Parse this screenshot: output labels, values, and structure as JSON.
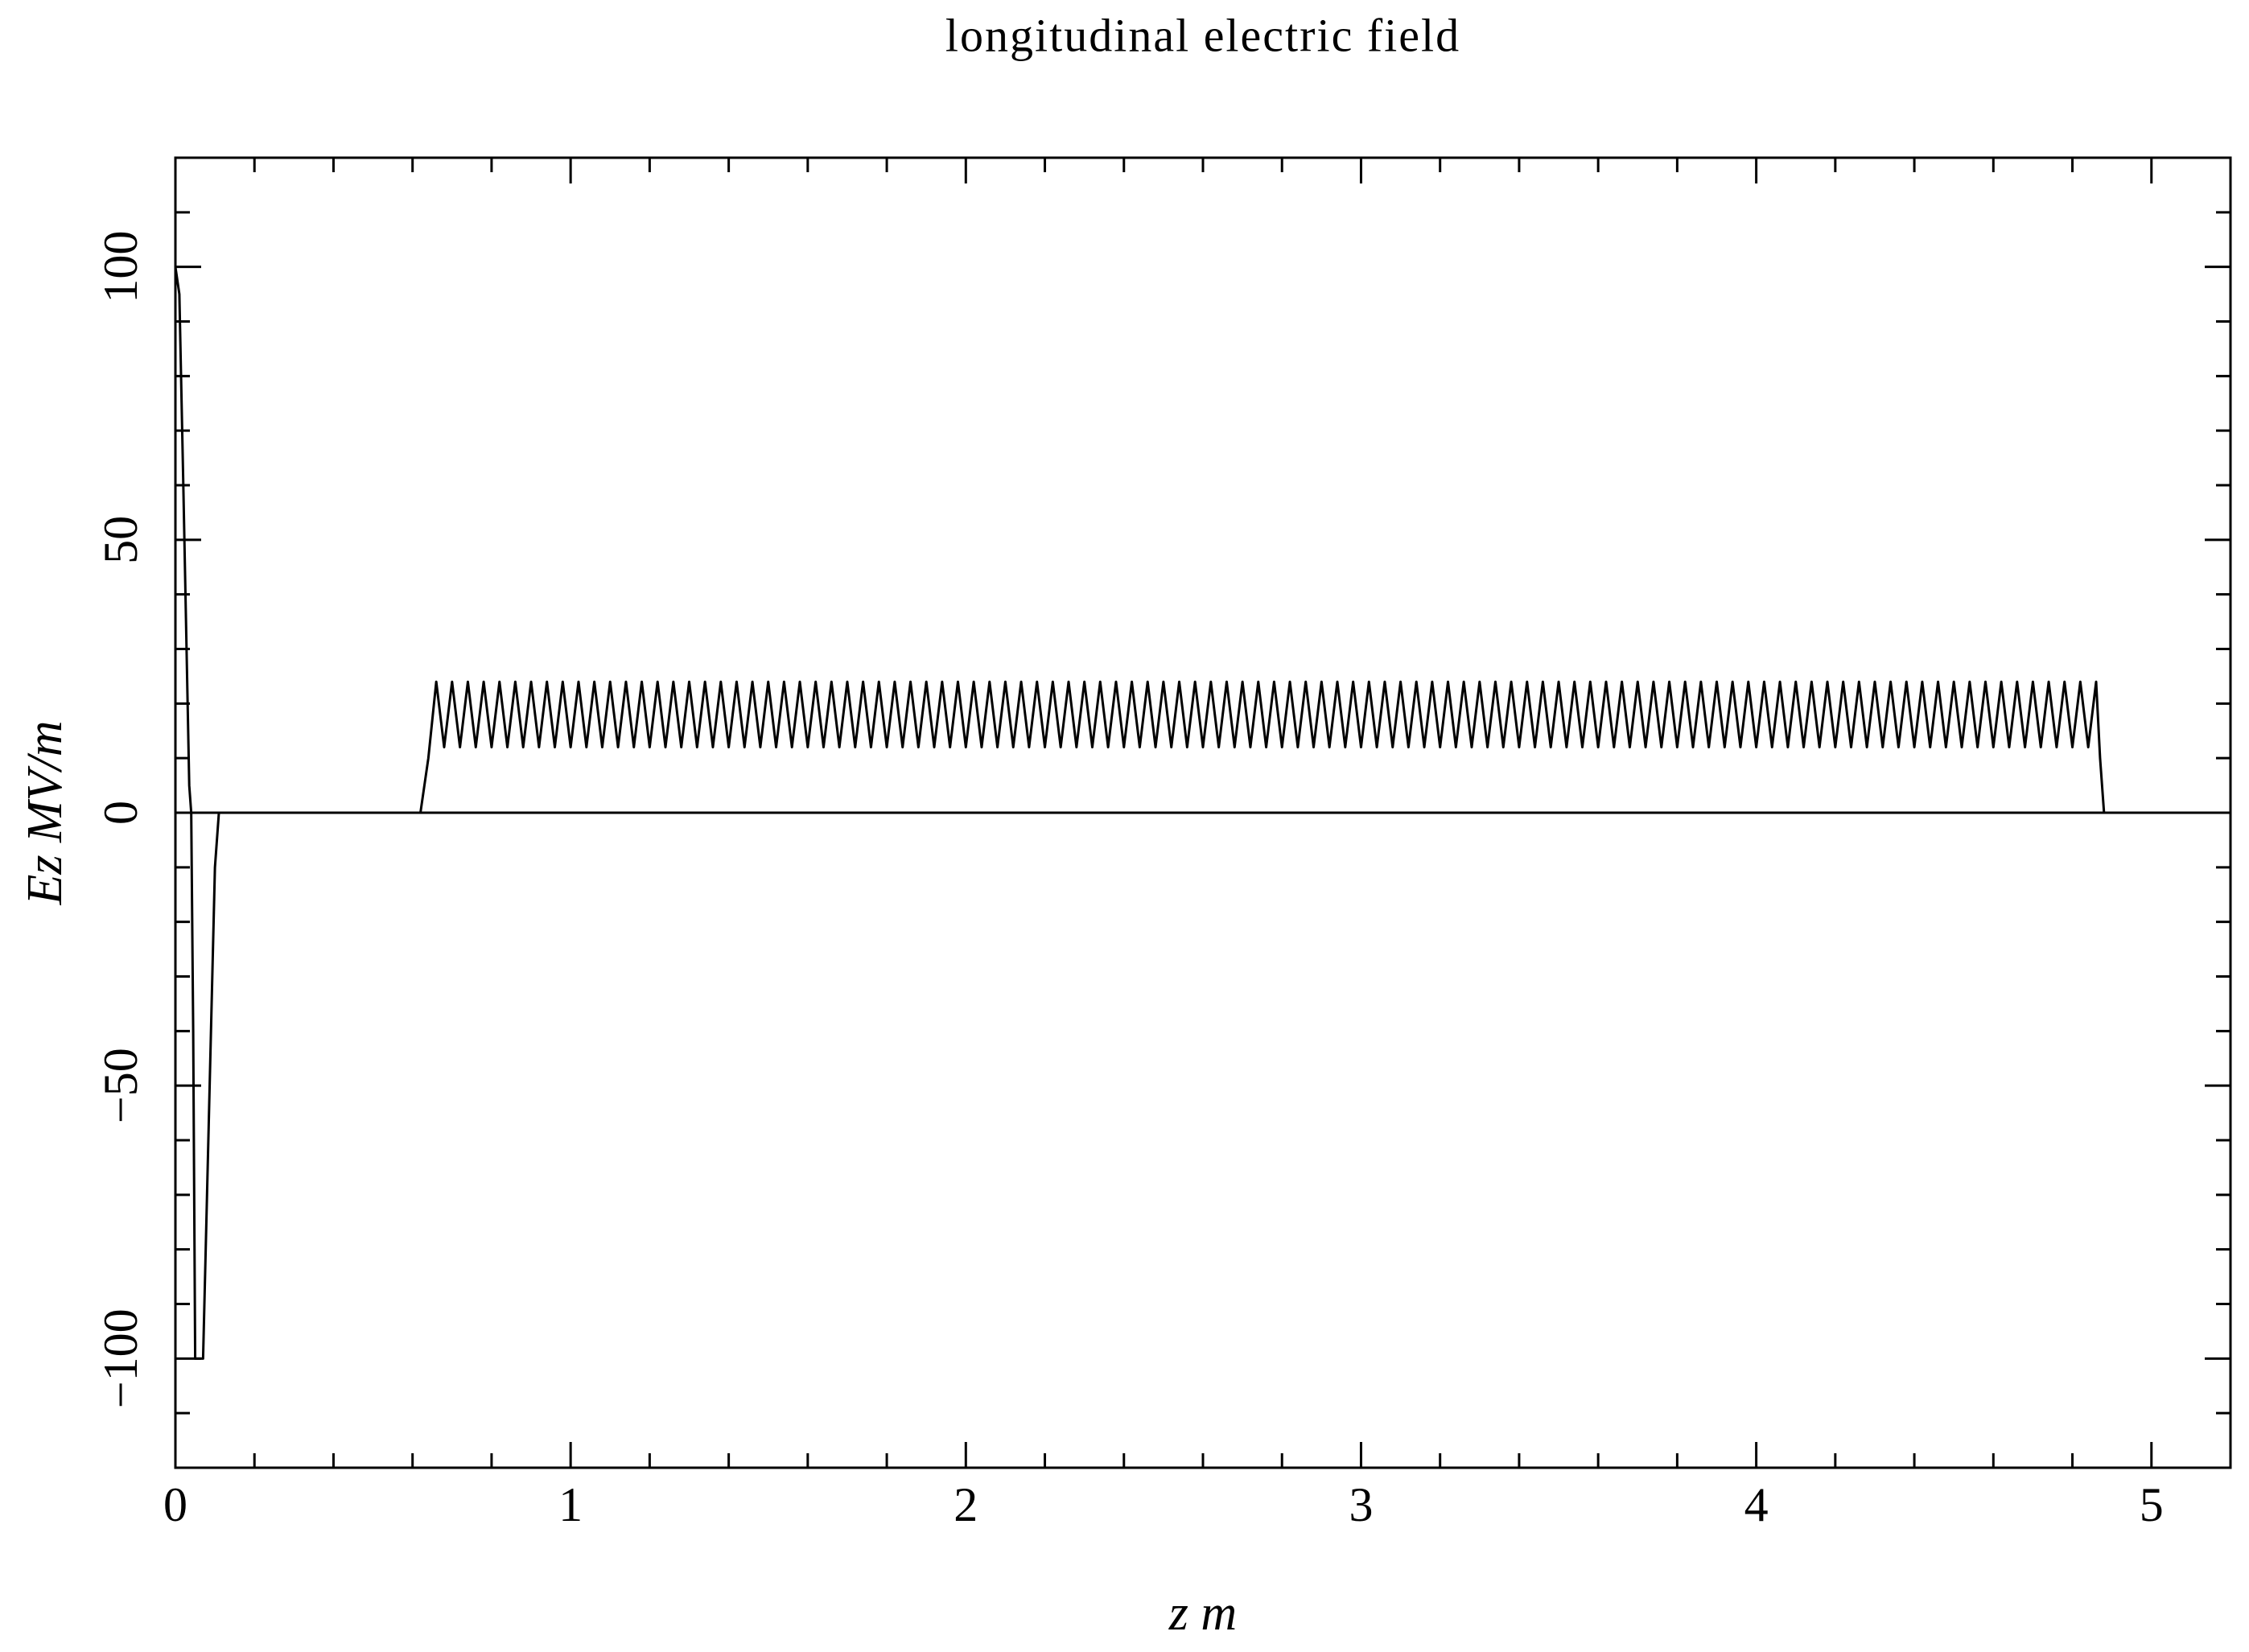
{
  "chart_data": {
    "type": "line",
    "title": "longitudinal electric field",
    "x_label": "z m",
    "y_label": "Ez MV/m",
    "color": "#000000",
    "zero_line": true,
    "xlim": [
      0,
      5.2
    ],
    "ylim": [
      -120,
      120
    ],
    "xticks": [
      0,
      1,
      2,
      3,
      4,
      5
    ],
    "yticks": [
      -100,
      -50,
      0,
      50,
      100
    ],
    "xminorticks": [
      0.2,
      0.4,
      0.6,
      0.8,
      1.2,
      1.4,
      1.6,
      1.8,
      2.2,
      2.4,
      2.6,
      2.8,
      3.2,
      3.4,
      3.6,
      3.8,
      4.2,
      4.4,
      4.6,
      4.8,
      5.2
    ],
    "yminorticks": [
      -120,
      -110,
      -90,
      -80,
      -70,
      -60,
      -40,
      -30,
      -20,
      -10,
      10,
      20,
      30,
      40,
      60,
      70,
      80,
      90,
      110,
      120
    ],
    "x": [
      0,
      0.01,
      0.02,
      0.035,
      0.04,
      0.045,
      0.05,
      0.07,
      0.08,
      0.09,
      0.1,
      0.11,
      0.6,
      0.62,
      0.64,
      0.66,
      0.68,
      0.7,
      0.72,
      0.74,
      0.76,
      0.78,
      0.8,
      0.82,
      0.84,
      0.86,
      0.88,
      0.9,
      0.92,
      0.94,
      0.96,
      0.98,
      1,
      1.02,
      1.04,
      1.06,
      1.08,
      1.1,
      1.12,
      1.14,
      1.16,
      1.18,
      1.2,
      1.22,
      1.24,
      1.26,
      1.28,
      1.3,
      1.32,
      1.34,
      1.36,
      1.38,
      1.4,
      1.42,
      1.44,
      1.46,
      1.48,
      1.5,
      1.52,
      1.54,
      1.56,
      1.58,
      1.6,
      1.62,
      1.64,
      1.66,
      1.68,
      1.7,
      1.72,
      1.74,
      1.76,
      1.78,
      1.8,
      1.82,
      1.84,
      1.86,
      1.88,
      1.9,
      1.92,
      1.94,
      1.96,
      1.98,
      2,
      2.02,
      2.04,
      2.06,
      2.08,
      2.1,
      2.12,
      2.14,
      2.16,
      2.18,
      2.2,
      2.22,
      2.24,
      2.26,
      2.28,
      2.3,
      2.32,
      2.34,
      2.36,
      2.38,
      2.4,
      2.42,
      2.44,
      2.46,
      2.48,
      2.5,
      2.52,
      2.54,
      2.56,
      2.58,
      2.6,
      2.62,
      2.64,
      2.66,
      2.68,
      2.7,
      2.72,
      2.74,
      2.76,
      2.78,
      2.8,
      2.82,
      2.84,
      2.86,
      2.88,
      2.9,
      2.92,
      2.94,
      2.96,
      2.98,
      3,
      3.02,
      3.04,
      3.06,
      3.08,
      3.1,
      3.12,
      3.14,
      3.16,
      3.18,
      3.2,
      3.22,
      3.24,
      3.26,
      3.28,
      3.3,
      3.32,
      3.34,
      3.36,
      3.38,
      3.4,
      3.42,
      3.44,
      3.46,
      3.48,
      3.5,
      3.52,
      3.54,
      3.56,
      3.58,
      3.6,
      3.62,
      3.64,
      3.66,
      3.68,
      3.7,
      3.72,
      3.74,
      3.76,
      3.78,
      3.8,
      3.82,
      3.84,
      3.86,
      3.88,
      3.9,
      3.92,
      3.94,
      3.96,
      3.98,
      4,
      4.02,
      4.04,
      4.06,
      4.08,
      4.1,
      4.12,
      4.14,
      4.16,
      4.18,
      4.2,
      4.22,
      4.24,
      4.26,
      4.28,
      4.3,
      4.32,
      4.34,
      4.36,
      4.38,
      4.4,
      4.42,
      4.44,
      4.46,
      4.48,
      4.5,
      4.52,
      4.54,
      4.56,
      4.58,
      4.6,
      4.62,
      4.64,
      4.66,
      4.68,
      4.7,
      4.72,
      4.74,
      4.76,
      4.78,
      4.8,
      4.82,
      4.84,
      4.86,
      4.87,
      4.88,
      5.2
    ],
    "values": [
      100,
      95,
      60,
      5,
      0,
      -40,
      -100,
      -100,
      -70,
      -40,
      -10,
      0,
      0,
      0,
      10,
      24,
      12,
      24,
      12,
      24,
      12,
      24,
      12,
      24,
      12,
      24,
      12,
      24,
      12,
      24,
      12,
      24,
      12,
      24,
      12,
      24,
      12,
      24,
      12,
      24,
      12,
      24,
      12,
      24,
      12,
      24,
      12,
      24,
      12,
      24,
      12,
      24,
      12,
      24,
      12,
      24,
      12,
      24,
      12,
      24,
      12,
      24,
      12,
      24,
      12,
      24,
      12,
      24,
      12,
      24,
      12,
      24,
      12,
      24,
      12,
      24,
      12,
      24,
      12,
      24,
      12,
      24,
      12,
      24,
      12,
      24,
      12,
      24,
      12,
      24,
      12,
      24,
      12,
      24,
      12,
      24,
      12,
      24,
      12,
      24,
      12,
      24,
      12,
      24,
      12,
      24,
      12,
      24,
      12,
      24,
      12,
      24,
      12,
      24,
      12,
      24,
      12,
      24,
      12,
      24,
      12,
      24,
      12,
      24,
      12,
      24,
      12,
      24,
      12,
      24,
      12,
      24,
      12,
      24,
      12,
      24,
      12,
      24,
      12,
      24,
      12,
      24,
      12,
      24,
      12,
      24,
      12,
      24,
      12,
      24,
      12,
      24,
      12,
      24,
      12,
      24,
      12,
      24,
      12,
      24,
      12,
      24,
      12,
      24,
      12,
      24,
      12,
      24,
      12,
      24,
      12,
      24,
      12,
      24,
      12,
      24,
      12,
      24,
      12,
      24,
      12,
      24,
      12,
      24,
      12,
      24,
      12,
      24,
      12,
      24,
      12,
      24,
      12,
      24,
      12,
      24,
      12,
      24,
      12,
      24,
      12,
      24,
      12,
      24,
      12,
      24,
      12,
      24,
      12,
      24,
      12,
      24,
      12,
      24,
      12,
      24,
      12,
      24,
      12,
      24,
      12,
      24,
      12,
      24,
      12,
      24,
      10,
      0,
      0
    ]
  }
}
